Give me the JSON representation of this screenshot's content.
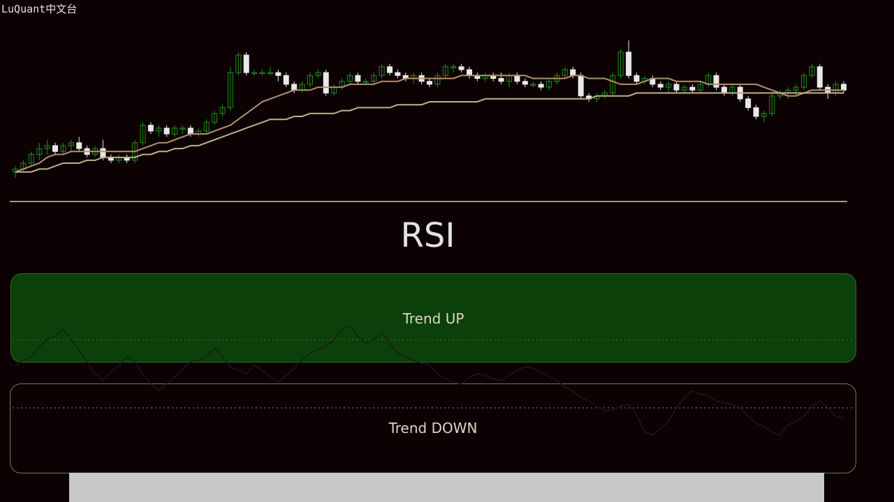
{
  "watermark": "LuQuant中文台",
  "rsi_title": "RSI",
  "zones": {
    "up_label": "Trend UP",
    "down_label": "Trend DOWN"
  },
  "colors": {
    "background": "#0c0203",
    "bull_candle": "#1f8f1c",
    "bear_candle": "#e8e8e8",
    "ma_fast": "#b58f6e",
    "ma_slow": "#c2b18a",
    "zone_up_fill": "#0b400a",
    "rsi_line": "#1a1a1a"
  },
  "chart_data": [
    {
      "type": "candlestick",
      "title": "",
      "series": [
        {
          "name": "",
          "kind": "candles",
          "ohlc": [
            [
              50,
              52,
              48,
              51
            ],
            [
              51,
              54,
              50,
              53
            ],
            [
              53,
              57,
              52,
              56
            ],
            [
              56,
              60,
              54,
              58
            ],
            [
              58,
              61,
              56,
              59
            ],
            [
              59,
              60,
              56,
              57
            ],
            [
              57,
              60,
              56,
              59
            ],
            [
              59,
              61,
              57,
              60
            ],
            [
              60,
              62,
              57,
              58
            ],
            [
              58,
              59,
              55,
              56
            ],
            [
              56,
              59,
              55,
              58
            ],
            [
              58,
              61,
              54,
              55
            ],
            [
              55,
              56,
              53,
              54
            ],
            [
              54,
              56,
              53,
              55
            ],
            [
              55,
              56,
              53,
              54
            ],
            [
              54,
              61,
              53,
              60
            ],
            [
              60,
              67,
              59,
              66
            ],
            [
              66,
              67,
              63,
              64
            ],
            [
              64,
              66,
              62,
              65
            ],
            [
              65,
              66,
              62,
              63
            ],
            [
              63,
              66,
              62,
              65
            ],
            [
              65,
              66,
              63,
              65
            ],
            [
              65,
              66,
              62,
              63
            ],
            [
              63,
              65,
              62,
              64
            ],
            [
              64,
              68,
              63,
              67
            ],
            [
              67,
              71,
              66,
              70
            ],
            [
              70,
              73,
              69,
              72
            ],
            [
              72,
              86,
              71,
              84
            ],
            [
              84,
              91,
              83,
              90
            ],
            [
              90,
              91,
              83,
              84
            ],
            [
              84,
              85,
              83,
              84
            ],
            [
              84,
              85,
              83,
              84
            ],
            [
              84,
              86,
              83,
              84
            ],
            [
              84,
              85,
              81,
              83
            ],
            [
              83,
              84,
              79,
              80
            ],
            [
              80,
              81,
              77,
              78
            ],
            [
              78,
              81,
              77,
              80
            ],
            [
              80,
              84,
              79,
              83
            ],
            [
              83,
              85,
              82,
              84
            ],
            [
              84,
              85,
              76,
              77
            ],
            [
              77,
              80,
              76,
              79
            ],
            [
              79,
              82,
              78,
              81
            ],
            [
              81,
              84,
              80,
              83
            ],
            [
              83,
              84,
              80,
              81
            ],
            [
              81,
              82,
              80,
              81
            ],
            [
              81,
              84,
              80,
              83
            ],
            [
              83,
              87,
              82,
              86
            ],
            [
              86,
              87,
              83,
              84
            ],
            [
              84,
              85,
              82,
              83
            ],
            [
              83,
              84,
              81,
              82
            ],
            [
              82,
              84,
              80,
              83
            ],
            [
              83,
              84,
              80,
              81
            ],
            [
              81,
              82,
              79,
              80
            ],
            [
              80,
              84,
              79,
              83
            ],
            [
              83,
              87,
              82,
              86
            ],
            [
              86,
              87,
              84,
              86
            ],
            [
              86,
              87,
              84,
              85
            ],
            [
              85,
              86,
              82,
              83
            ],
            [
              83,
              84,
              81,
              82
            ],
            [
              82,
              84,
              81,
              83
            ],
            [
              83,
              84,
              81,
              82
            ],
            [
              82,
              84,
              80,
              81
            ],
            [
              81,
              84,
              79,
              83
            ],
            [
              83,
              84,
              80,
              81
            ],
            [
              81,
              82,
              79,
              80
            ],
            [
              80,
              81,
              79,
              80
            ],
            [
              80,
              81,
              78,
              79
            ],
            [
              79,
              82,
              78,
              81
            ],
            [
              81,
              84,
              80,
              83
            ],
            [
              83,
              86,
              82,
              85
            ],
            [
              85,
              86,
              82,
              83
            ],
            [
              83,
              84,
              75,
              76
            ],
            [
              76,
              77,
              74,
              75
            ],
            [
              75,
              77,
              74,
              76
            ],
            [
              76,
              78,
              75,
              77
            ],
            [
              77,
              84,
              76,
              83
            ],
            [
              83,
              92,
              82,
              91
            ],
            [
              91,
              95,
              82,
              83
            ],
            [
              83,
              84,
              80,
              81
            ],
            [
              81,
              83,
              80,
              82
            ],
            [
              82,
              83,
              79,
              80
            ],
            [
              80,
              81,
              78,
              79
            ],
            [
              79,
              81,
              77,
              80
            ],
            [
              80,
              81,
              77,
              78
            ],
            [
              78,
              80,
              77,
              79
            ],
            [
              79,
              80,
              77,
              78
            ],
            [
              78,
              81,
              77,
              80
            ],
            [
              80,
              84,
              79,
              83
            ],
            [
              83,
              84,
              78,
              79
            ],
            [
              79,
              80,
              76,
              77
            ],
            [
              77,
              80,
              76,
              79
            ],
            [
              79,
              80,
              74,
              75
            ],
            [
              75,
              76,
              71,
              72
            ],
            [
              72,
              73,
              68,
              69
            ],
            [
              69,
              71,
              67,
              70
            ],
            [
              70,
              77,
              69,
              76
            ],
            [
              76,
              78,
              75,
              77
            ],
            [
              77,
              79,
              75,
              78
            ],
            [
              78,
              80,
              76,
              79
            ],
            [
              79,
              84,
              78,
              83
            ],
            [
              83,
              87,
              82,
              86
            ],
            [
              86,
              87,
              78,
              79
            ],
            [
              79,
              80,
              75,
              77
            ],
            [
              77,
              81,
              76,
              80
            ],
            [
              80,
              81,
              77,
              78
            ]
          ]
        },
        {
          "name": "",
          "kind": "ma_fast",
          "values": [
            50,
            51,
            52,
            53,
            55,
            56,
            56,
            57,
            57,
            57,
            57,
            57,
            57,
            57,
            57,
            57,
            58,
            59,
            60,
            60,
            61,
            62,
            63,
            63,
            63,
            64,
            65,
            66,
            68,
            70,
            72,
            74,
            75,
            76,
            77,
            78,
            78,
            78,
            79,
            79,
            79,
            79,
            80,
            80,
            80,
            80,
            81,
            81,
            81,
            82,
            82,
            82,
            82,
            82,
            82,
            82,
            83,
            83,
            83,
            83,
            83,
            83,
            83,
            83,
            83,
            82,
            82,
            82,
            82,
            82,
            83,
            83,
            82,
            82,
            82,
            81,
            80,
            80,
            80,
            81,
            82,
            82,
            82,
            81,
            81,
            81,
            81,
            80,
            80,
            80,
            80,
            80,
            80,
            80,
            79,
            78,
            77,
            76,
            76,
            77,
            78,
            78,
            78,
            78,
            78
          ]
        },
        {
          "name": "",
          "kind": "ma_slow",
          "values": [
            50,
            50,
            50,
            51,
            51,
            52,
            53,
            53,
            53,
            54,
            54,
            55,
            55,
            55,
            55,
            55,
            56,
            56,
            57,
            57,
            58,
            58,
            59,
            59,
            60,
            61,
            62,
            63,
            64,
            65,
            66,
            67,
            68,
            68,
            68,
            69,
            69,
            70,
            70,
            70,
            70,
            71,
            71,
            72,
            72,
            72,
            72,
            72,
            73,
            73,
            73,
            73,
            74,
            74,
            74,
            74,
            74,
            74,
            74,
            75,
            75,
            75,
            75,
            75,
            75,
            75,
            75,
            75,
            75,
            75,
            75,
            75,
            75,
            76,
            76,
            76,
            76,
            76,
            77,
            77,
            77,
            77,
            77,
            77,
            77,
            77,
            77,
            77,
            77,
            77,
            77,
            77,
            77,
            77,
            77,
            77,
            77,
            77,
            77,
            77,
            77,
            77,
            77,
            77,
            77
          ]
        }
      ]
    },
    {
      "type": "line",
      "title": "",
      "levels": [
        70,
        30
      ],
      "series": [
        {
          "name": "",
          "values": [
            55,
            58,
            60,
            66,
            70,
            72,
            76,
            70,
            64,
            57,
            50,
            46,
            51,
            55,
            60,
            57,
            50,
            44,
            40,
            44,
            48,
            53,
            57,
            58,
            60,
            65,
            60,
            54,
            52,
            50,
            55,
            52,
            48,
            45,
            49,
            53,
            58,
            62,
            64,
            66,
            70,
            76,
            78,
            72,
            68,
            70,
            74,
            68,
            62,
            60,
            58,
            56,
            55,
            50,
            47,
            45,
            44,
            48,
            50,
            49,
            47,
            46,
            49,
            52,
            54,
            53,
            51,
            48,
            46,
            42,
            40,
            36,
            34,
            31,
            28,
            29,
            31,
            32,
            26,
            16,
            14,
            18,
            22,
            30,
            36,
            40,
            38,
            37,
            34,
            33,
            32,
            30,
            25,
            21,
            19,
            16,
            14,
            20,
            22,
            25,
            31,
            34,
            30,
            25,
            24
          ]
        }
      ]
    }
  ]
}
